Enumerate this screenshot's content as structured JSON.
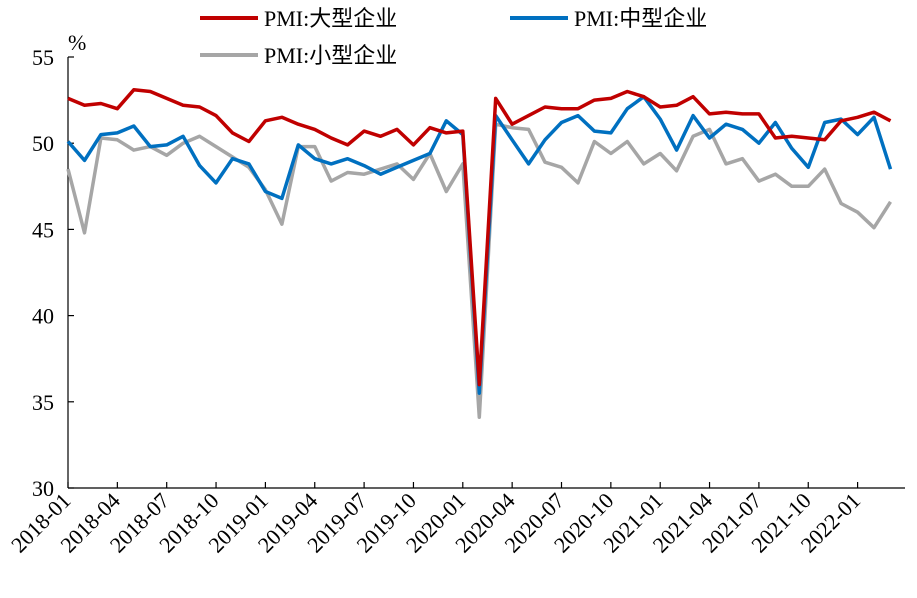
{
  "chart_data": {
    "type": "line",
    "y_unit": "%",
    "categories": [
      "2018-01",
      null,
      null,
      "2018-04",
      null,
      null,
      "2018-07",
      null,
      null,
      "2018-10",
      null,
      null,
      "2019-01",
      null,
      null,
      "2019-04",
      null,
      null,
      "2019-07",
      null,
      null,
      "2019-10",
      null,
      null,
      "2020-01",
      null,
      null,
      "2020-04",
      null,
      null,
      "2020-07",
      null,
      null,
      "2020-10",
      null,
      null,
      "2021-01",
      null,
      null,
      "2021-04",
      null,
      null,
      "2021-07",
      null,
      null,
      "2021-10",
      null,
      null,
      "2022-01",
      null,
      null
    ],
    "series": [
      {
        "name": "PMI:大型企业",
        "color": "#c00000",
        "values": [
          52.6,
          52.2,
          52.3,
          52.0,
          53.1,
          53.0,
          52.6,
          52.2,
          52.1,
          51.6,
          50.6,
          50.1,
          51.3,
          51.5,
          51.1,
          50.8,
          50.3,
          49.9,
          50.7,
          50.4,
          50.8,
          49.9,
          50.9,
          50.6,
          50.7,
          36.0,
          52.6,
          51.1,
          51.6,
          52.1,
          52.0,
          52.0,
          52.5,
          52.6,
          53.0,
          52.7,
          52.1,
          52.2,
          52.7,
          51.7,
          51.8,
          51.7,
          51.7,
          50.3,
          50.4,
          50.3,
          50.2,
          51.3,
          51.5,
          51.8,
          51.3
        ]
      },
      {
        "name": "PMI:中型企业",
        "color": "#0070c0",
        "values": [
          50.1,
          49.0,
          50.5,
          50.6,
          51.0,
          49.8,
          49.9,
          50.4,
          48.7,
          47.7,
          49.1,
          48.8,
          47.2,
          46.8,
          49.9,
          49.1,
          48.8,
          49.1,
          48.7,
          48.2,
          48.6,
          49.0,
          49.4,
          51.3,
          50.5,
          35.5,
          51.6,
          50.2,
          48.8,
          50.2,
          51.2,
          51.6,
          50.7,
          50.6,
          52.0,
          52.7,
          51.4,
          49.6,
          51.6,
          50.3,
          51.1,
          50.8,
          50.0,
          51.2,
          49.7,
          48.6,
          51.2,
          51.4,
          50.5,
          51.5,
          48.5
        ]
      },
      {
        "name": "PMI:小型企业",
        "color": "#a6a6a6",
        "values": [
          48.5,
          44.8,
          50.3,
          50.2,
          49.6,
          49.8,
          49.3,
          50.0,
          50.4,
          49.8,
          49.2,
          48.6,
          47.3,
          45.3,
          49.8,
          49.8,
          47.8,
          48.3,
          48.2,
          48.5,
          48.8,
          47.9,
          49.4,
          47.2,
          48.8,
          34.1,
          51.1,
          50.9,
          50.8,
          48.9,
          48.6,
          47.7,
          50.1,
          49.4,
          50.1,
          48.8,
          49.4,
          48.4,
          50.4,
          50.8,
          48.8,
          49.1,
          47.8,
          48.2,
          47.5,
          47.5,
          48.5,
          46.5,
          46.0,
          45.1,
          46.6
        ]
      }
    ],
    "ylim": [
      30,
      55
    ],
    "yticks": [
      30,
      35,
      40,
      45,
      50,
      55
    ],
    "grid": false,
    "legend": "top"
  }
}
